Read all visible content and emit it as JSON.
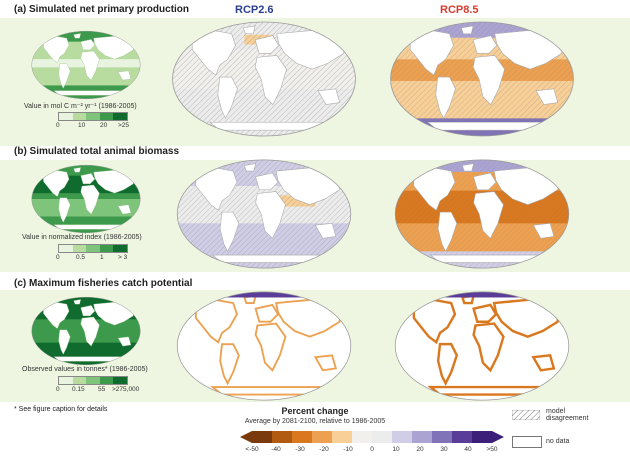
{
  "panels": [
    {
      "id": "a",
      "title": "(a) Simulated net primary production",
      "baseline_label": "Value in  mol C m⁻² yr⁻¹ (1986-2005)",
      "baseline_ticks": [
        "0",
        "10",
        "20",
        ">25"
      ]
    },
    {
      "id": "b",
      "title": "(b) Simulated total animal biomass",
      "baseline_label": "Value in normalized index (1986-2005)",
      "baseline_ticks": [
        "0",
        "0.5",
        "1",
        "> 3"
      ]
    },
    {
      "id": "c",
      "title": "(c) Maximum fisheries catch potential",
      "baseline_label": "Observed values in tonnes* (1986-2005)",
      "baseline_ticks": [
        "0",
        "0.15",
        "55",
        ">275,000"
      ]
    }
  ],
  "scenarios": [
    {
      "label": "RCP2.6",
      "color": "#2c3f8f"
    },
    {
      "label": "RCP8.5",
      "color": "#d63b2f"
    }
  ],
  "footnote": "* See figure caption for details",
  "percent_change": {
    "title": "Percent change",
    "subtitle": "Average by 2081-2100, relative to 1986-2005",
    "ticks": [
      "<-50",
      "-40",
      "-30",
      "-20",
      "-10",
      "0",
      "10",
      "20",
      "30",
      "40",
      ">50"
    ]
  },
  "legend": {
    "model_disagreement": "model disagreement",
    "no_data": "no data"
  },
  "colors": {
    "green_scale": [
      "#e8f4e0",
      "#b8dca0",
      "#7ec47a",
      "#3d9a4d",
      "#0f6b2e"
    ],
    "change_scale": [
      "#7a3a0b",
      "#b15a12",
      "#d9781f",
      "#eda150",
      "#f7cf97",
      "#f2f0ec",
      "#ececec",
      "#d0cde6",
      "#aba4d3",
      "#8073b7",
      "#5a3d99",
      "#3c1f78"
    ]
  }
}
